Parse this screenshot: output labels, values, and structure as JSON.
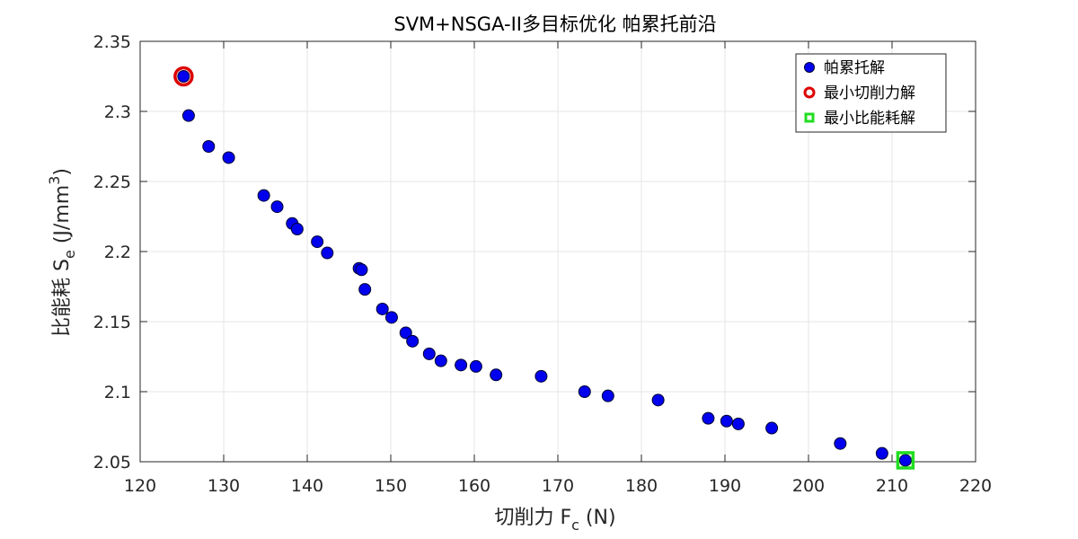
{
  "chart_data": {
    "type": "scatter",
    "title": "SVM+NSGA-II多目标优化 帕累托前沿",
    "xlabel_main": "切削力 F",
    "xlabel_sub": "c",
    "xlabel_tail": " (N)",
    "ylabel_main": "比能耗 S",
    "ylabel_sub": "e",
    "ylabel_tail": " (J/mm",
    "ylabel_sup": "3",
    "ylabel_close": ")",
    "xlim": [
      120,
      220
    ],
    "ylim": [
      2.05,
      2.35
    ],
    "xticks": [
      120,
      130,
      140,
      150,
      160,
      170,
      180,
      190,
      200,
      210,
      220
    ],
    "yticks": [
      2.05,
      2.1,
      2.15,
      2.2,
      2.25,
      2.3,
      2.35
    ],
    "xtick_labels": [
      "120",
      "130",
      "140",
      "150",
      "160",
      "170",
      "180",
      "190",
      "200",
      "210",
      "220"
    ],
    "ytick_labels": [
      "2.05",
      "2.1",
      "2.15",
      "2.2",
      "2.25",
      "2.3",
      "2.35"
    ],
    "grid": true,
    "legend_position": "top-right",
    "series": [
      {
        "name": "帕累托解",
        "marker": "circle-filled",
        "color": "#0000ee",
        "edge": "#000033",
        "points": [
          [
            125.2,
            2.325
          ],
          [
            125.8,
            2.297
          ],
          [
            128.2,
            2.275
          ],
          [
            130.6,
            2.267
          ],
          [
            134.8,
            2.24
          ],
          [
            136.4,
            2.232
          ],
          [
            138.2,
            2.22
          ],
          [
            138.8,
            2.216
          ],
          [
            141.2,
            2.207
          ],
          [
            142.4,
            2.199
          ],
          [
            146.2,
            2.188
          ],
          [
            146.5,
            2.187
          ],
          [
            146.9,
            2.173
          ],
          [
            149.0,
            2.159
          ],
          [
            150.1,
            2.153
          ],
          [
            151.8,
            2.142
          ],
          [
            152.6,
            2.136
          ],
          [
            154.6,
            2.127
          ],
          [
            156.0,
            2.122
          ],
          [
            158.4,
            2.119
          ],
          [
            160.2,
            2.118
          ],
          [
            162.6,
            2.112
          ],
          [
            168.0,
            2.111
          ],
          [
            173.2,
            2.1
          ],
          [
            176.0,
            2.097
          ],
          [
            182.0,
            2.094
          ],
          [
            188.0,
            2.081
          ],
          [
            190.2,
            2.079
          ],
          [
            191.6,
            2.077
          ],
          [
            195.6,
            2.074
          ],
          [
            203.8,
            2.063
          ],
          [
            208.8,
            2.056
          ],
          [
            211.6,
            2.051
          ]
        ]
      },
      {
        "name": "最小切削力解",
        "marker": "circle-open",
        "color": "#dd0000",
        "points": [
          [
            125.2,
            2.325
          ]
        ]
      },
      {
        "name": "最小比能耗解",
        "marker": "square-open",
        "color": "#22dd22",
        "points": [
          [
            211.6,
            2.051
          ]
        ]
      }
    ]
  }
}
